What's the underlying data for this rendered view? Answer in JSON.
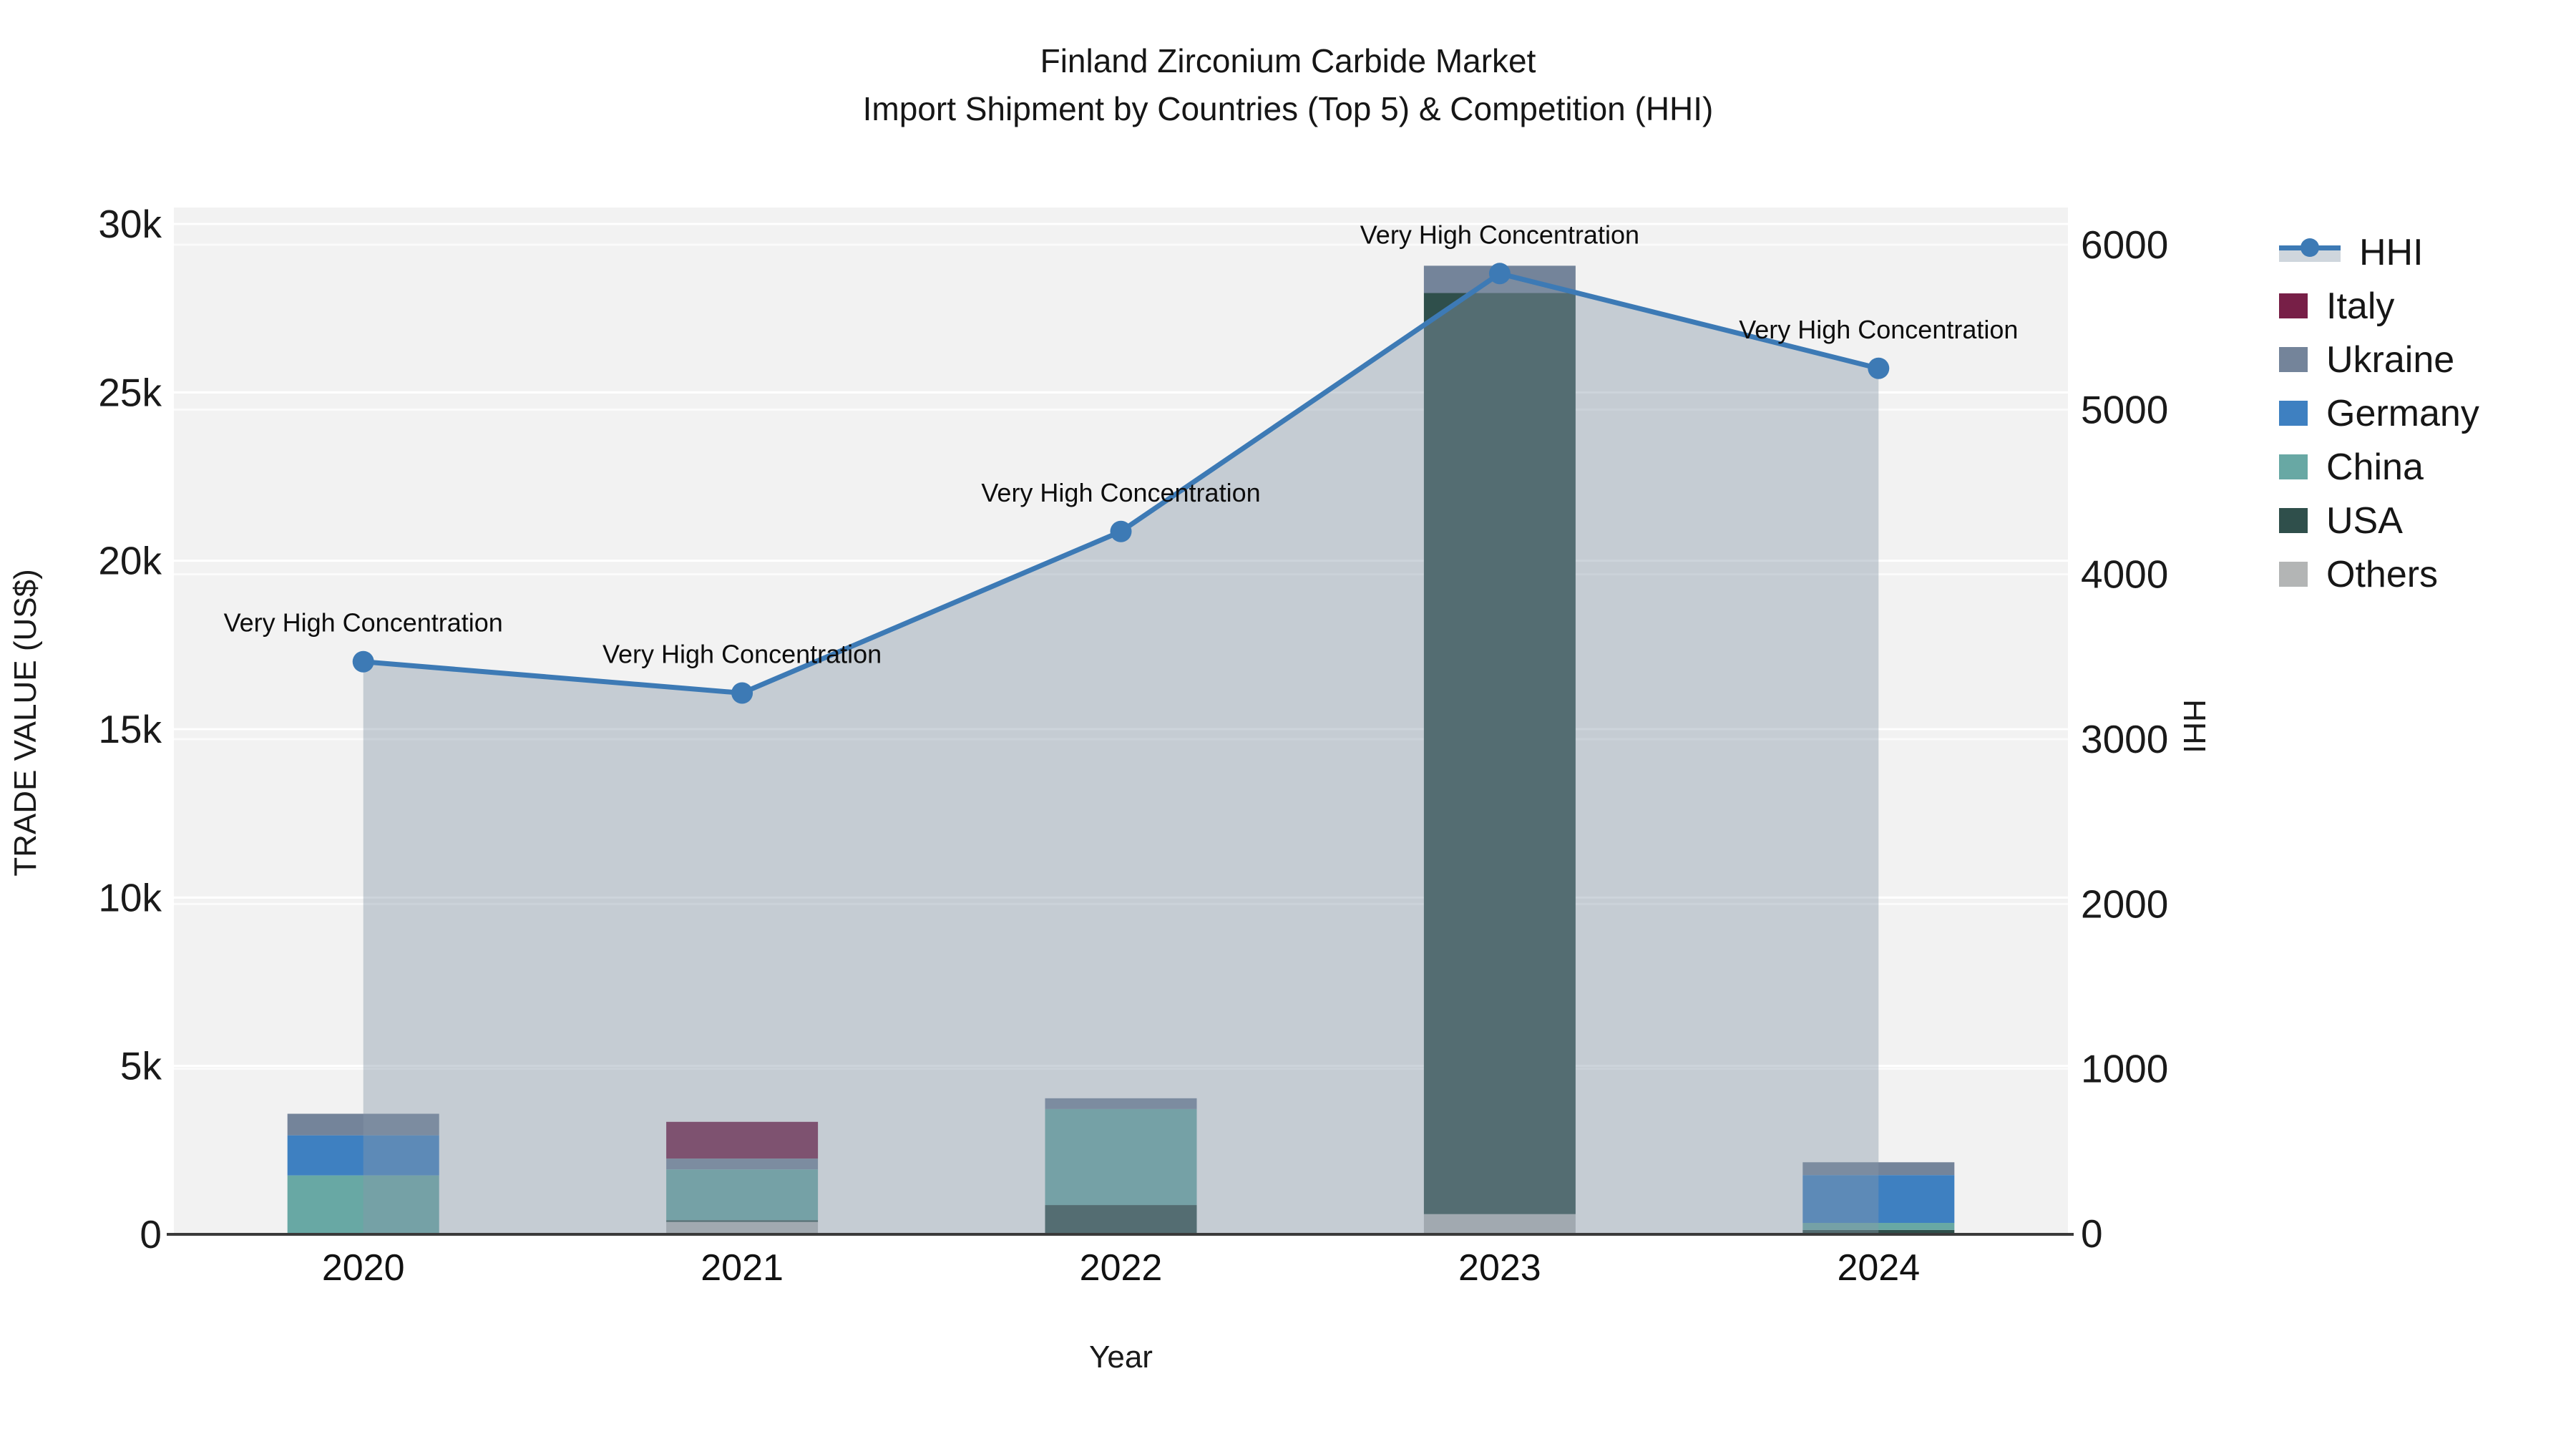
{
  "title": {
    "line1": "Finland Zirconium Carbide Market",
    "line2": "Import Shipment by Countries (Top 5) & Competition (HHI)"
  },
  "legend": {
    "items": [
      {
        "label": "HHI",
        "type": "line-area",
        "color": "#3d7ab5",
        "band_color": "#cfd6dd"
      },
      {
        "label": "Italy",
        "type": "box",
        "color": "#771f47"
      },
      {
        "label": "Ukraine",
        "type": "box",
        "color": "#74849a"
      },
      {
        "label": "Germany",
        "type": "box",
        "color": "#3e80c1"
      },
      {
        "label": "China",
        "type": "box",
        "color": "#68a8a4"
      },
      {
        "label": "USA",
        "type": "box",
        "color": "#2f4f4b"
      },
      {
        "label": "Others",
        "type": "box",
        "color": "#b3b5b5"
      }
    ]
  },
  "chart_data": {
    "type": "combo: stacked bar (trade value) + line with area fill (HHI)",
    "categories": [
      "2020",
      "2021",
      "2022",
      "2023",
      "2024"
    ],
    "bar_series": [
      {
        "name": "Others",
        "color": "#b3b5b5",
        "values": [
          0,
          370,
          0,
          600,
          0
        ]
      },
      {
        "name": "USA",
        "color": "#2f4f4b",
        "values": [
          0,
          50,
          870,
          27350,
          130
        ]
      },
      {
        "name": "China",
        "color": "#68a8a4",
        "values": [
          1750,
          1510,
          2850,
          0,
          210
        ]
      },
      {
        "name": "Germany",
        "color": "#3e80c1",
        "values": [
          1190,
          0,
          0,
          0,
          1420
        ]
      },
      {
        "name": "Ukraine",
        "color": "#74849a",
        "values": [
          640,
          320,
          320,
          810,
          380
        ]
      },
      {
        "name": "Italy",
        "color": "#771f47",
        "values": [
          0,
          1090,
          0,
          0,
          0
        ]
      }
    ],
    "bar_totals": [
      3580,
      3340,
      4040,
      28760,
      2140
    ],
    "line_series": {
      "name": "HHI",
      "color": "#3d7ab5",
      "area_fill": "rgba(136,152,170,0.42)",
      "values": [
        3470,
        3280,
        4260,
        5825,
        5250
      ],
      "annotations": [
        "Very High Concentration",
        "Very High Concentration",
        "Very High Concentration",
        "Very High Concentration",
        "Very High Concentration"
      ]
    },
    "x_label": "Year",
    "y_left": {
      "label": "TRADE VALUE (US$)",
      "range": [
        0,
        30000
      ],
      "tick_values": [
        0,
        5000,
        10000,
        15000,
        20000,
        25000,
        30000
      ],
      "tick_labels": [
        "0",
        "5k",
        "10k",
        "15k",
        "20k",
        "25k",
        "30k"
      ]
    },
    "y_right": {
      "label": "HHI",
      "range": [
        0,
        6000
      ],
      "tick_values": [
        0,
        1000,
        2000,
        3000,
        4000,
        5000,
        6000
      ],
      "tick_labels": [
        "0",
        "1000",
        "2000",
        "3000",
        "4000",
        "5000",
        "6000"
      ]
    },
    "grid": "horizontal gridlines, white on light-gray plot background",
    "legend_position": "right"
  }
}
